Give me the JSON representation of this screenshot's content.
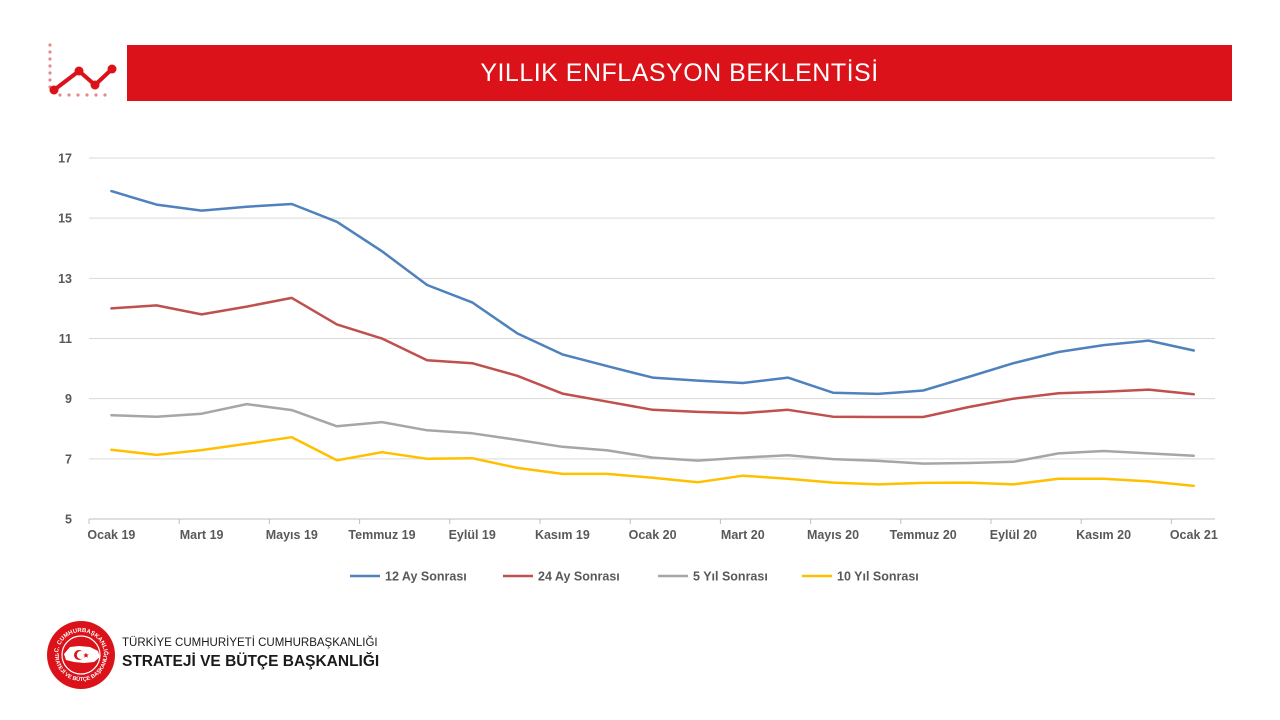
{
  "header": {
    "title": "YILLIK ENFLASYON BEKLENTİSİ"
  },
  "colors": {
    "brand_red": "#db1219"
  },
  "footer": {
    "line1": "TÜRKİYE CUMHURİYETİ CUMHURBAŞKANLIĞI",
    "line2": "STRATEJİ VE BÜTÇE BAŞKANLIĞI",
    "seal_text_top": "T.C. CUMHURBAŞKANLIĞI",
    "seal_text_bottom": "STRATEJİ VE BÜTÇE BAŞKANLIĞI"
  },
  "chart_data": {
    "type": "line",
    "title": "",
    "xlabel": "",
    "ylabel": "",
    "ylim": [
      5,
      17
    ],
    "yticks": [
      5,
      7,
      9,
      11,
      13,
      15,
      17
    ],
    "grid": true,
    "legend_position": "bottom",
    "categories": [
      "Ocak 19",
      "Şubat 19",
      "Mart 19",
      "Nisan 19",
      "Mayıs 19",
      "Haziran 19",
      "Temmuz 19",
      "Ağustos 19",
      "Eylül 19",
      "Ekim 19",
      "Kasım 19",
      "Aralık 19",
      "Ocak 20",
      "Şubat 20",
      "Mart 20",
      "Nisan 20",
      "Mayıs 20",
      "Haziran 20",
      "Temmuz 20",
      "Ağustos 20",
      "Eylül 20",
      "Ekim 20",
      "Kasım 20",
      "Aralık 20",
      "Ocak 21"
    ],
    "x_tick_labels": [
      "Ocak 19",
      "Mart 19",
      "Mayıs 19",
      "Temmuz 19",
      "Eylül 19",
      "Kasım 19",
      "Ocak 20",
      "Mart 20",
      "Mayıs 20",
      "Temmuz 20",
      "Eylül 20",
      "Kasım 20",
      "Ocak 21"
    ],
    "series": [
      {
        "name": "12 Ay Sonrası",
        "color": "#4f81bd",
        "values": [
          15.9,
          15.45,
          15.25,
          15.38,
          15.47,
          14.88,
          13.9,
          12.78,
          12.2,
          11.17,
          10.47,
          10.08,
          9.7,
          9.6,
          9.52,
          9.7,
          9.2,
          9.16,
          9.27,
          9.72,
          10.18,
          10.55,
          10.78,
          10.93,
          10.6
        ]
      },
      {
        "name": "24 Ay Sonrası",
        "color": "#c0504d",
        "values": [
          12.0,
          12.1,
          11.8,
          12.06,
          12.35,
          11.47,
          11.0,
          10.28,
          10.18,
          9.76,
          9.17,
          8.9,
          8.63,
          8.56,
          8.52,
          8.63,
          8.4,
          8.39,
          8.39,
          8.72,
          9.0,
          9.18,
          9.23,
          9.3,
          9.15
        ]
      },
      {
        "name": "5 Yıl Sonrası",
        "color": "#a6a6a6",
        "values": [
          8.45,
          8.4,
          8.5,
          8.82,
          8.62,
          8.08,
          8.22,
          7.95,
          7.85,
          7.63,
          7.4,
          7.28,
          7.04,
          6.94,
          7.04,
          7.12,
          6.99,
          6.93,
          6.84,
          6.86,
          6.9,
          7.18,
          7.26,
          7.18,
          7.1
        ]
      },
      {
        "name": "10 Yıl Sonrası",
        "color": "#ffc000",
        "values": [
          7.3,
          7.13,
          7.29,
          7.5,
          7.72,
          6.95,
          7.22,
          7.0,
          7.02,
          6.7,
          6.5,
          6.5,
          6.37,
          6.22,
          6.44,
          6.34,
          6.21,
          6.15,
          6.2,
          6.21,
          6.15,
          6.34,
          6.34,
          6.25,
          6.1
        ]
      }
    ]
  }
}
